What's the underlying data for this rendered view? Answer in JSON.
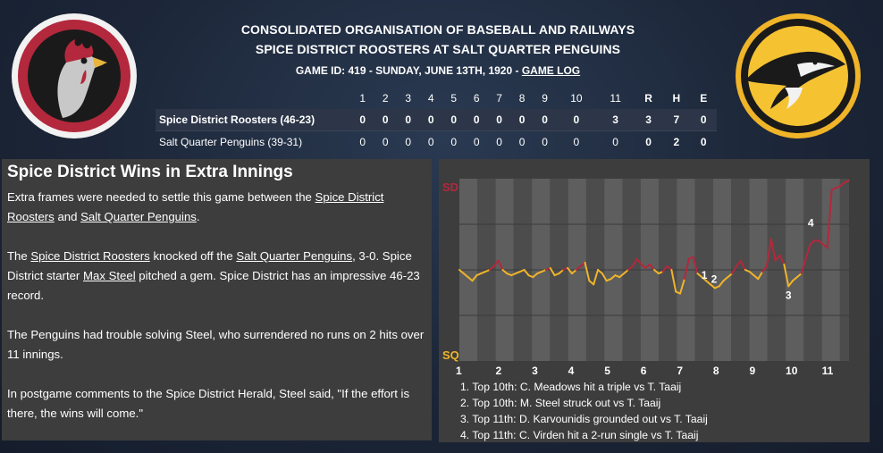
{
  "header": {
    "league": "CONSOLIDATED ORGANISATION OF BASEBALL AND RAILWAYS",
    "matchup": "SPICE DISTRICT ROOSTERS AT SALT QUARTER PENGUINS",
    "game_id_text": "GAME ID: 419 - SUNDAY, JUNE 13TH, 1920 - ",
    "game_log_link": "GAME LOG"
  },
  "colors": {
    "roosters": "#b3283c",
    "penguins": "#f0b429",
    "panel": "#3d3d3d"
  },
  "box_score": {
    "innings": [
      "1",
      "2",
      "3",
      "4",
      "5",
      "6",
      "7",
      "8",
      "9",
      "10",
      "11"
    ],
    "totals_headers": [
      "R",
      "H",
      "E"
    ],
    "rows": [
      {
        "team": "Spice District Roosters (46-23)",
        "innings": [
          "0",
          "0",
          "0",
          "0",
          "0",
          "0",
          "0",
          "0",
          "0",
          "0",
          "3"
        ],
        "r": "3",
        "h": "7",
        "e": "0"
      },
      {
        "team": "Salt Quarter Penguins (39-31)",
        "innings": [
          "0",
          "0",
          "0",
          "0",
          "0",
          "0",
          "0",
          "0",
          "0",
          "0",
          "0"
        ],
        "r": "0",
        "h": "2",
        "e": "0"
      }
    ]
  },
  "recap": {
    "headline": "Spice District Wins in Extra Innings",
    "p1": [
      "Extra frames were needed to settle this game between the ",
      "Spice District Roosters",
      " and ",
      "Salt Quarter Penguins",
      "."
    ],
    "p2": [
      "The ",
      "Spice District Roosters",
      " knocked off the ",
      "Salt Quarter Penguins",
      ", 3-0. Spice District starter ",
      "Max Steel",
      " pitched a gem. Spice District has an impressive 46-23 record."
    ],
    "p3": "The Penguins had trouble solving Steel, who surrendered no runs on 2 hits over 11 innings.",
    "p4": "In postgame comments to the Spice District Herald, Steel said, \"If the effort is there, the wins will come.\""
  },
  "chart_data": {
    "type": "line",
    "top_label": "SD",
    "bottom_label": "SQ",
    "x_labels": [
      "1",
      "2",
      "3",
      "4",
      "5",
      "6",
      "7",
      "8",
      "9",
      "10",
      "11"
    ],
    "ylim": [
      0,
      1
    ],
    "win_probability": [
      0.5,
      0.48,
      0.46,
      0.44,
      0.47,
      0.48,
      0.49,
      0.5,
      0.52,
      0.55,
      0.5,
      0.48,
      0.47,
      0.48,
      0.49,
      0.5,
      0.47,
      0.46,
      0.48,
      0.49,
      0.5,
      0.51,
      0.47,
      0.48,
      0.5,
      0.51,
      0.48,
      0.5,
      0.52,
      0.54,
      0.44,
      0.42,
      0.5,
      0.48,
      0.44,
      0.45,
      0.47,
      0.46,
      0.48,
      0.5,
      0.52,
      0.56,
      0.53,
      0.51,
      0.53,
      0.5,
      0.48,
      0.49,
      0.52,
      0.5,
      0.38,
      0.37,
      0.45,
      0.56,
      0.57,
      0.48,
      0.46,
      0.44,
      0.42,
      0.4,
      0.41,
      0.44,
      0.46,
      0.48,
      0.52,
      0.55,
      0.5,
      0.49,
      0.47,
      0.45,
      0.49,
      0.52,
      0.67,
      0.55,
      0.58,
      0.53,
      0.41,
      0.44,
      0.46,
      0.48,
      0.56,
      0.64,
      0.66,
      0.66,
      0.64,
      0.62,
      0.94,
      0.95,
      0.96,
      0.98,
      0.99
    ],
    "events": [
      {
        "label": "1",
        "index": 57
      },
      {
        "label": "2",
        "index": 58
      },
      {
        "label": "3",
        "index": 76
      },
      {
        "label": "4",
        "index": 82
      }
    ]
  },
  "plays": [
    "1. Top 10th: C. Meadows hit a triple vs T. Taaij",
    "2. Top 10th: M. Steel struck out vs T. Taaij",
    "3. Top 11th: D. Karvounidis grounded out vs T. Taaij",
    "4. Top 11th: C. Virden hit a 2-run single vs T. Taaij"
  ]
}
